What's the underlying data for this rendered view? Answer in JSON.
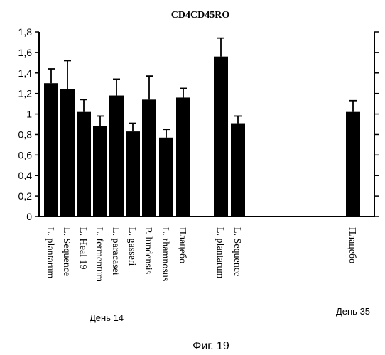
{
  "chart_data": {
    "type": "bar",
    "title": "CD4CD45RO",
    "caption": "Фиг. 19",
    "ylim": [
      0,
      1.8
    ],
    "yticks": [
      "0",
      "0,2",
      "0,4",
      "0,6",
      "0,8",
      "1",
      "1,2",
      "1,4",
      "1,6",
      "1,8"
    ],
    "grid": false,
    "groups": [
      {
        "label": "День 14",
        "bars": [
          {
            "category": "L. plantarum",
            "value": 1.3,
            "error": 0.14
          },
          {
            "category": "L. Sequence",
            "value": 1.24,
            "error": 0.28
          },
          {
            "category": "L. Heal 19",
            "value": 1.02,
            "error": 0.12
          },
          {
            "category": "L. fermentum",
            "value": 0.88,
            "error": 0.1
          },
          {
            "category": "L. paracasei",
            "value": 1.18,
            "error": 0.16
          },
          {
            "category": "L. gasseri",
            "value": 0.83,
            "error": 0.08
          },
          {
            "category": "P. lundensis",
            "value": 1.14,
            "error": 0.23
          },
          {
            "category": "L. rhamnosus",
            "value": 0.77,
            "error": 0.08
          },
          {
            "category": "Плацебо",
            "value": 1.16,
            "error": 0.09
          }
        ]
      },
      {
        "label": "",
        "bars": [
          {
            "category": "L. plantarum",
            "value": 1.56,
            "error": 0.18
          },
          {
            "category": "L. Sequence",
            "value": 0.91,
            "error": 0.07
          }
        ]
      },
      {
        "label": "День 35",
        "bars": [
          {
            "category": "Плацебо",
            "value": 1.02,
            "error": 0.11
          }
        ]
      }
    ]
  }
}
